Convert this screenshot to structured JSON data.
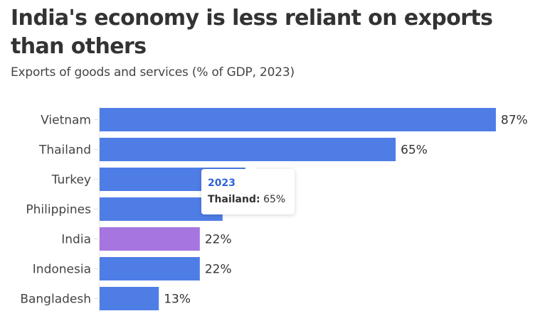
{
  "header": {
    "title": "India's economy is less reliant on exports than others",
    "subtitle": "Exports of goods and services (% of GDP, 2023)"
  },
  "colors": {
    "bar": "#4f7de6",
    "highlight": "#a675e0",
    "axis": "#e6e6e6"
  },
  "chart_data": {
    "type": "bar",
    "orientation": "horizontal",
    "title": "India's economy is less reliant on exports than others",
    "subtitle": "Exports of goods and services (% of GDP, 2023)",
    "categories": [
      "Vietnam",
      "Thailand",
      "Turkey",
      "Philippines",
      "India",
      "Indonesia",
      "Bangladesh"
    ],
    "values": [
      87,
      65,
      32,
      27,
      22,
      22,
      13
    ],
    "value_labels": [
      "87%",
      "65%",
      "",
      "",
      "22%",
      "22%",
      "13%"
    ],
    "highlight": "India",
    "xlim": [
      0,
      87
    ],
    "grid": false
  },
  "tooltip": {
    "year": "2023",
    "country": "Thailand:",
    "value": "65%"
  }
}
